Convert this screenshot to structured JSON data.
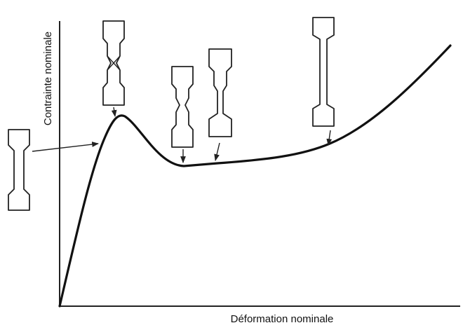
{
  "axes": {
    "y_label": "Contrainte nominale",
    "x_label": "Déformation nominale"
  }
}
